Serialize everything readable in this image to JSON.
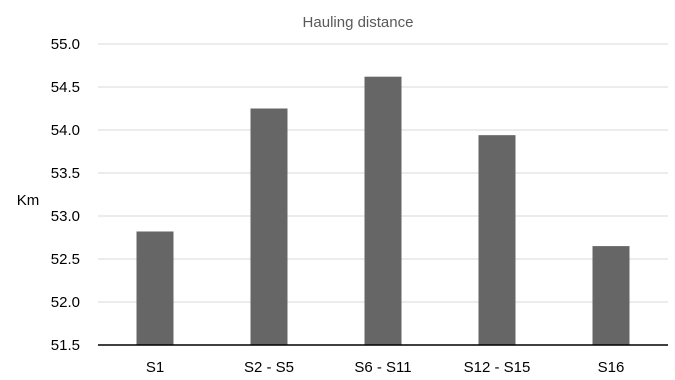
{
  "chart_data": {
    "type": "bar",
    "title": "Hauling distance",
    "xlabel": "",
    "ylabel": "Km",
    "categories": [
      "S1",
      "S2 - S5",
      "S6 - S11",
      "S12 - S15",
      "S16"
    ],
    "values": [
      52.82,
      54.25,
      54.62,
      53.94,
      52.65
    ],
    "ylim": [
      51.5,
      55.0
    ],
    "yticks": [
      "51.5",
      "52.0",
      "52.5",
      "53.0",
      "53.5",
      "54.0",
      "54.5",
      "55.0"
    ],
    "grid": true,
    "legend": "none",
    "bar_color": "#666666",
    "grid_color": "#d9d9d9",
    "axis_color": "#000000"
  }
}
